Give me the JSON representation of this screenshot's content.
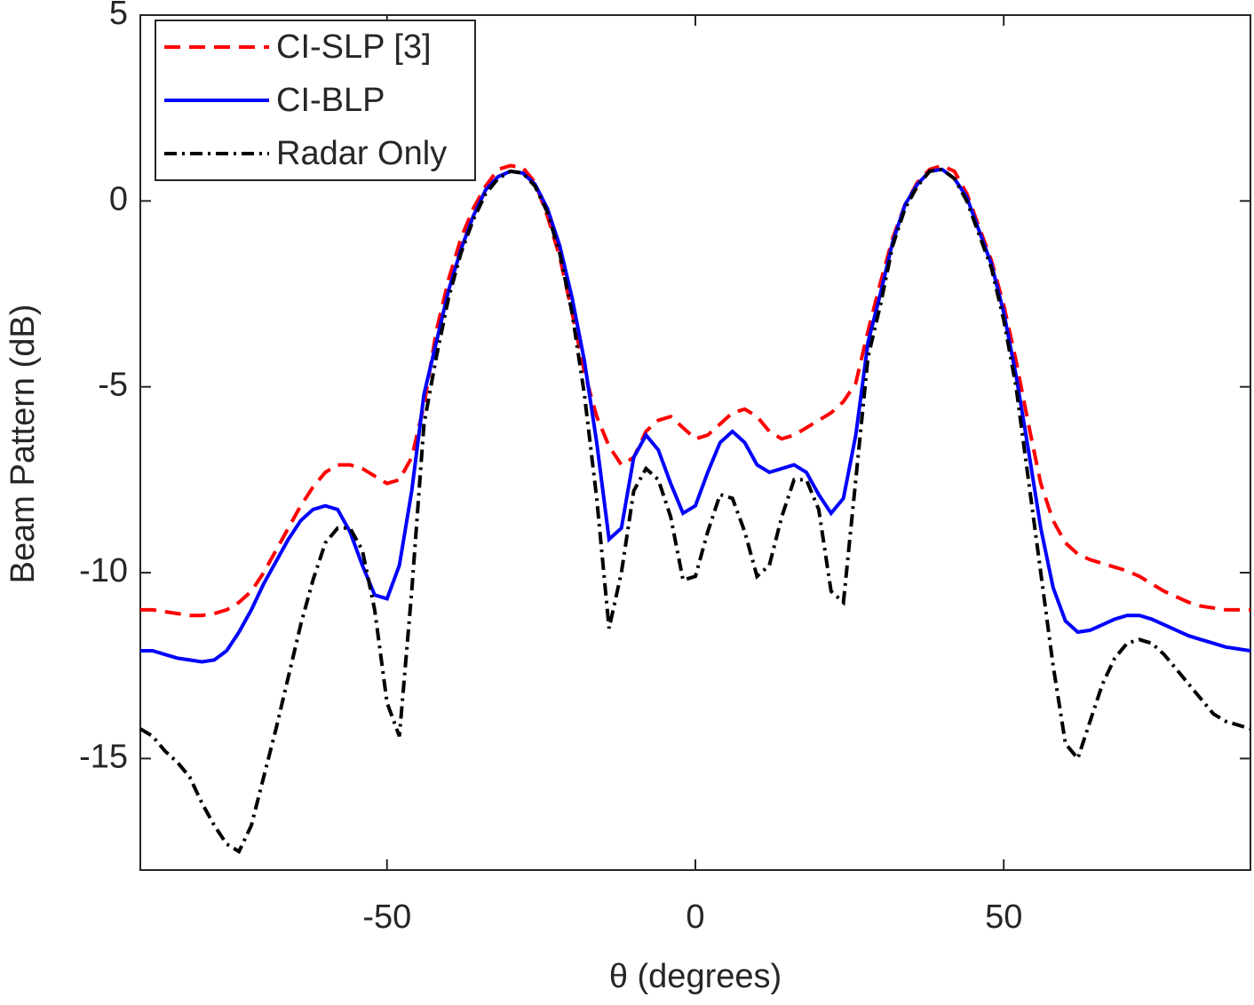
{
  "chart_data": {
    "type": "line",
    "xlabel": "θ (degrees)",
    "ylabel": "Beam Pattern (dB)",
    "xlim": [
      -90,
      90
    ],
    "ylim": [
      -18,
      5
    ],
    "xticks": [
      -50,
      0,
      50
    ],
    "yticks": [
      -15,
      -10,
      -5,
      0,
      5
    ],
    "legend": "upper left",
    "x": [
      -90,
      -88,
      -86,
      -84,
      -82,
      -80,
      -78,
      -76,
      -74,
      -72,
      -70,
      -68,
      -66,
      -64,
      -62,
      -60,
      -58,
      -56,
      -54,
      -52,
      -50,
      -48,
      -46,
      -44,
      -42,
      -40,
      -38,
      -36,
      -34,
      -32,
      -30,
      -28,
      -26,
      -24,
      -22,
      -20,
      -18,
      -16,
      -14,
      -12,
      -10,
      -8,
      -6,
      -4,
      -2,
      0,
      2,
      4,
      6,
      8,
      10,
      12,
      14,
      16,
      18,
      20,
      22,
      24,
      26,
      28,
      30,
      32,
      34,
      36,
      38,
      40,
      42,
      44,
      46,
      48,
      50,
      52,
      54,
      56,
      58,
      60,
      62,
      64,
      66,
      68,
      70,
      72,
      74,
      76,
      78,
      80,
      82,
      84,
      86,
      88,
      90
    ],
    "series": [
      {
        "name": "CI-SLP [3]",
        "color": "#ff0000",
        "style": "dashed",
        "values": [
          -11.0,
          -11.0,
          -11.05,
          -11.1,
          -11.15,
          -11.15,
          -11.1,
          -11.0,
          -10.8,
          -10.5,
          -10.0,
          -9.4,
          -8.8,
          -8.2,
          -7.7,
          -7.3,
          -7.1,
          -7.1,
          -7.2,
          -7.4,
          -7.6,
          -7.5,
          -6.9,
          -5.5,
          -3.5,
          -2.1,
          -1.0,
          -0.2,
          0.4,
          0.85,
          0.95,
          0.9,
          0.5,
          -0.4,
          -1.5,
          -3.0,
          -4.6,
          -5.8,
          -6.6,
          -7.1,
          -6.9,
          -6.2,
          -5.9,
          -5.8,
          -6.1,
          -6.4,
          -6.3,
          -6.0,
          -5.7,
          -5.6,
          -5.8,
          -6.2,
          -6.4,
          -6.3,
          -6.1,
          -5.9,
          -5.7,
          -5.4,
          -4.9,
          -3.5,
          -2.2,
          -1.0,
          -0.1,
          0.5,
          0.85,
          0.95,
          0.8,
          0.2,
          -0.7,
          -1.6,
          -2.8,
          -4.3,
          -6.0,
          -7.6,
          -8.6,
          -9.2,
          -9.5,
          -9.65,
          -9.75,
          -9.85,
          -9.95,
          -10.1,
          -10.3,
          -10.5,
          -10.65,
          -10.8,
          -10.9,
          -10.95,
          -11.0,
          -11.0,
          -11.0
        ]
      },
      {
        "name": "CI-BLP",
        "color": "#0000ff",
        "style": "solid",
        "values": [
          -12.1,
          -12.1,
          -12.2,
          -12.3,
          -12.35,
          -12.4,
          -12.35,
          -12.1,
          -11.6,
          -11.0,
          -10.3,
          -9.7,
          -9.1,
          -8.6,
          -8.3,
          -8.2,
          -8.3,
          -8.9,
          -9.8,
          -10.6,
          -10.7,
          -9.8,
          -7.8,
          -5.2,
          -3.8,
          -2.4,
          -1.3,
          -0.4,
          0.3,
          0.65,
          0.8,
          0.75,
          0.45,
          -0.2,
          -1.2,
          -2.6,
          -4.3,
          -6.5,
          -9.1,
          -8.8,
          -6.9,
          -6.3,
          -6.7,
          -7.6,
          -8.4,
          -8.2,
          -7.3,
          -6.5,
          -6.2,
          -6.5,
          -7.1,
          -7.3,
          -7.2,
          -7.1,
          -7.3,
          -7.9,
          -8.4,
          -8.0,
          -6.3,
          -3.8,
          -2.5,
          -1.1,
          -0.1,
          0.45,
          0.8,
          0.85,
          0.6,
          0.1,
          -0.8,
          -1.7,
          -3.0,
          -4.7,
          -6.7,
          -8.8,
          -10.4,
          -11.3,
          -11.6,
          -11.55,
          -11.4,
          -11.25,
          -11.15,
          -11.15,
          -11.25,
          -11.4,
          -11.55,
          -11.7,
          -11.8,
          -11.9,
          -12.0,
          -12.05,
          -12.1
        ]
      },
      {
        "name": "Radar Only",
        "color": "#000000",
        "style": "dashdot",
        "values": [
          -14.2,
          -14.4,
          -14.8,
          -15.1,
          -15.5,
          -16.2,
          -16.8,
          -17.3,
          -17.5,
          -16.8,
          -15.5,
          -14.2,
          -12.8,
          -11.4,
          -10.2,
          -9.2,
          -8.8,
          -8.8,
          -9.4,
          -11.0,
          -13.5,
          -14.4,
          -10.5,
          -6.0,
          -4.2,
          -2.6,
          -1.4,
          -0.5,
          0.2,
          0.6,
          0.8,
          0.75,
          0.4,
          -0.3,
          -1.4,
          -3.0,
          -5.2,
          -8.0,
          -11.5,
          -10.0,
          -7.8,
          -7.2,
          -7.5,
          -8.5,
          -10.2,
          -10.1,
          -8.9,
          -7.9,
          -8.0,
          -8.9,
          -10.1,
          -9.8,
          -8.5,
          -7.5,
          -7.5,
          -8.3,
          -10.5,
          -10.8,
          -7.5,
          -4.2,
          -2.8,
          -1.2,
          -0.2,
          0.4,
          0.8,
          0.85,
          0.6,
          0.0,
          -0.9,
          -1.8,
          -3.2,
          -5.0,
          -7.5,
          -10.0,
          -12.5,
          -14.6,
          -15.0,
          -14.0,
          -13.0,
          -12.3,
          -11.9,
          -11.8,
          -11.9,
          -12.2,
          -12.6,
          -13.0,
          -13.4,
          -13.8,
          -14.0,
          -14.1,
          -14.2
        ]
      }
    ]
  }
}
